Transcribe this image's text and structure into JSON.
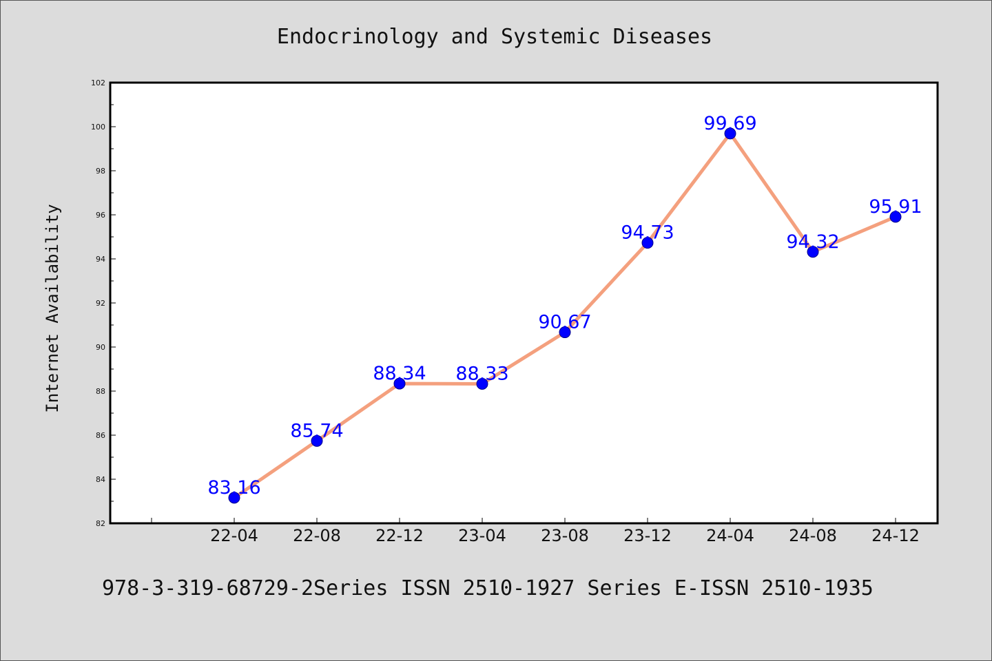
{
  "chart_data": {
    "type": "line",
    "title": "Endocrinology and Systemic Diseases",
    "xlabel": "",
    "ylabel": "Internet Availability",
    "categories": [
      "22-04",
      "22-08",
      "22-12",
      "23-04",
      "23-08",
      "23-12",
      "24-04",
      "24-08",
      "24-12"
    ],
    "series": [
      {
        "values": [
          83.16,
          85.74,
          88.34,
          88.33,
          90.67,
          94.73,
          99.69,
          94.32,
          95.91
        ]
      }
    ],
    "ylim": [
      82,
      102
    ],
    "yticks": [
      "82",
      "84",
      "86",
      "88",
      "90",
      "92",
      "94",
      "96",
      "98",
      "100",
      "102"
    ],
    "data_labels": [
      "83.16",
      "85.74",
      "88.34",
      "88.33",
      "90.67",
      "94.73",
      "99.69",
      "94.32",
      "95.91"
    ],
    "grid": false,
    "legend": "none"
  },
  "footer": {
    "text": "978-3-319-68729-2Series ISSN 2510-1927 Series E-ISSN 2510-1935"
  },
  "colors": {
    "background": "#dcdcdc",
    "plot_background": "#ffffff",
    "line": "#f4a07e",
    "marker": "#0000ff",
    "data_label": "#0000ff",
    "axis": "#000000"
  }
}
